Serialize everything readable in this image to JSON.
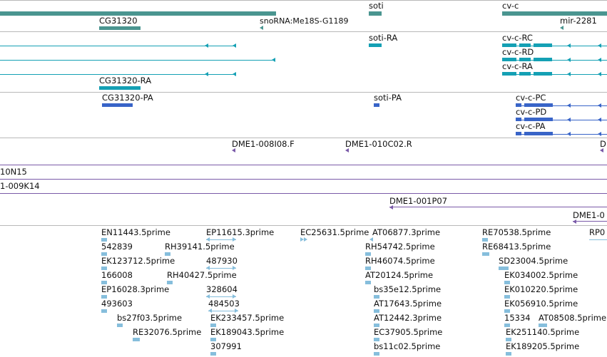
{
  "colors": {
    "gene": "#4a9590",
    "transcript": "#14a0b4",
    "protein": "#3864c8",
    "clone": "#7a5aa8",
    "est": "#86bedc",
    "separator": "#b8b8b8"
  },
  "tracks": {
    "genes": {
      "labels": [
        "CG31320",
        "snoRNA:Me18S-G1189",
        "soti",
        "cv-c",
        "mir-2281"
      ]
    },
    "transcripts": {
      "labels": [
        "soti-RA",
        "cv-c-RC",
        "cv-c-RD",
        "cv-c-RA",
        "CG31320-RA"
      ]
    },
    "proteins": {
      "labels": [
        "CG31320-PA",
        "soti-PA",
        "cv-c-PC",
        "cv-c-PD",
        "cv-c-PA"
      ]
    },
    "clone_ends": {
      "labels": [
        "DME1-008I08.F",
        "DME1-010C02.R",
        "D"
      ]
    },
    "clones": {
      "labels": [
        "10N15",
        "1-009K14",
        "DME1-001P07",
        "DME1-0"
      ]
    },
    "ests": {
      "labels": [
        "EN11443.5prime",
        "EP11615.3prime",
        "EC25631.5prime",
        "AT06877.3prime",
        "RE70538.5prime",
        "RP0",
        "542839",
        "RH39141.5prime",
        "RH54742.5prime",
        "RE68413.5prime",
        "EK123712.5prime",
        "487930",
        "RH46074.5prime",
        "SD23004.5prime",
        "166008",
        "RH40427.5prime",
        "AT20124.5prime",
        "EK034002.5prime",
        "EP16028.3prime",
        "328604",
        "bs35e12.5prime",
        "EK010220.5prime",
        "493603",
        "484503",
        "AT17643.5prime",
        "EK056910.5prime",
        "bs27f03.5prime",
        "EK233457.5prime",
        "AT12442.3prime",
        "15334",
        "AT08508.5prime",
        "RE32076.5prime",
        "EK189043.5prime",
        "EC37905.5prime",
        "EK251140.5prime",
        "307991",
        "bs11c02.5prime",
        "EK189205.5prime"
      ]
    }
  }
}
